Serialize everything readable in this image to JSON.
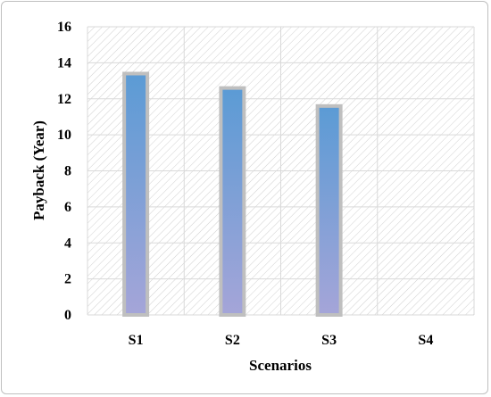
{
  "chart_data": {
    "type": "bar",
    "title": "",
    "xlabel": "Scenarios",
    "ylabel": "Payback (Year)",
    "categories": [
      "S1",
      "S2",
      "S3",
      "S4"
    ],
    "values": [
      13.4,
      12.6,
      11.6,
      0
    ],
    "ylim": [
      0,
      16
    ],
    "yticks": [
      0,
      2,
      4,
      6,
      8,
      10,
      12,
      14,
      16
    ],
    "grid": true,
    "legend": "none",
    "colors": {
      "bar_top": "#5b9bd5",
      "bar_bottom": "#a5a5d8",
      "bar_outline": "#bfbfbf",
      "grid": "#d9d9d9",
      "hatch": "#d0d0d0"
    }
  }
}
